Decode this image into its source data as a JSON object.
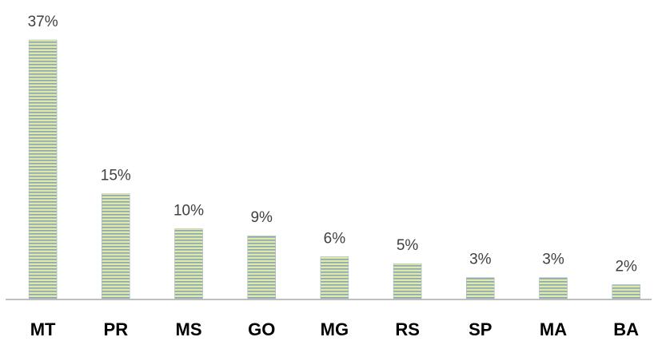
{
  "chart_data": {
    "type": "bar",
    "categories": [
      "MT",
      "PR",
      "MS",
      "GO",
      "MG",
      "RS",
      "SP",
      "MA",
      "BA"
    ],
    "values": [
      37,
      15,
      10,
      9,
      6,
      5,
      3,
      3,
      2
    ],
    "value_labels": [
      "37%",
      "15%",
      "10%",
      "9%",
      "6%",
      "5%",
      "3%",
      "3%",
      "2%"
    ],
    "color": "#8aa6b6"
  }
}
